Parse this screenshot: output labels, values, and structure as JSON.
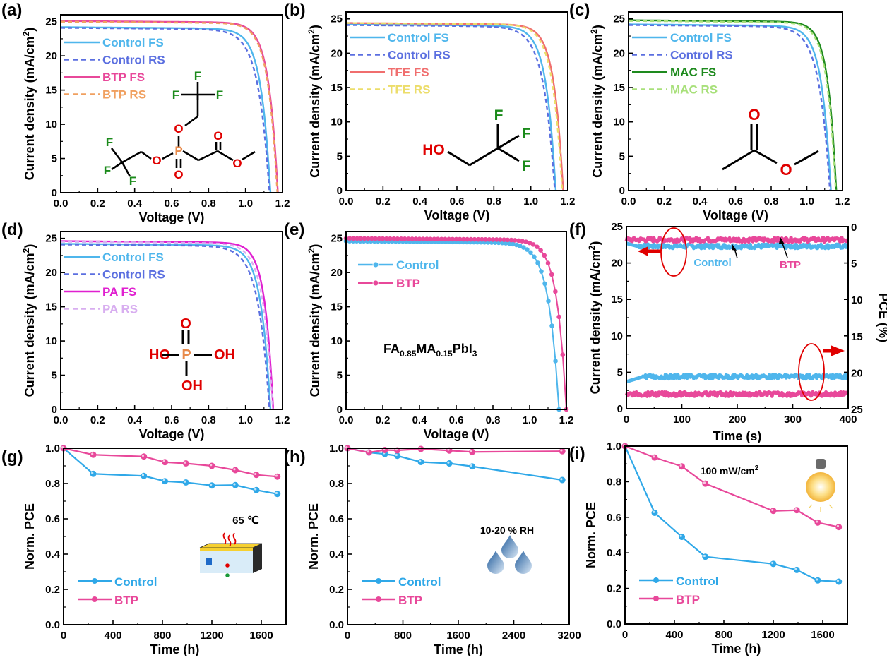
{
  "figure": {
    "panels": [
      "(a)",
      "(b)",
      "(c)",
      "(d)",
      "(e)",
      "(f)",
      "(g)",
      "(h)",
      "(i)"
    ]
  },
  "chart_data": [
    {
      "id": "a",
      "type": "line",
      "panel_label": "(a)",
      "xlabel": "Voltage (V)",
      "ylabel": "Current density (mA/cm²)",
      "xlim": [
        0,
        1.2
      ],
      "ylim": [
        0,
        26
      ],
      "xticks": [
        "0.0",
        "0.2",
        "0.4",
        "0.6",
        "0.8",
        "1.0",
        "1.2"
      ],
      "yticks": [
        "0",
        "5",
        "10",
        "15",
        "20",
        "25"
      ],
      "legend_position": "top-left",
      "series": [
        {
          "name": "Control FS",
          "color": "#4fb6ec",
          "dash": false,
          "jsc": 24.2,
          "voc": 1.135,
          "knee": 0.92
        },
        {
          "name": "Control RS",
          "color": "#5b6fe0",
          "dash": true,
          "jsc": 24.1,
          "voc": 1.13,
          "knee": 0.88
        },
        {
          "name": "BTP FS",
          "color": "#e8489a",
          "dash": false,
          "jsc": 25.1,
          "voc": 1.175,
          "knee": 0.97
        },
        {
          "name": "BTP RS",
          "color": "#f0a060",
          "dash": true,
          "jsc": 25.0,
          "voc": 1.172,
          "knee": 0.965
        }
      ],
      "molecule": {
        "name": "BTP",
        "atoms": [
          "F",
          "F",
          "F",
          "O",
          "P",
          "O",
          "O",
          "O",
          "O",
          "F",
          "F",
          "F"
        ]
      }
    },
    {
      "id": "b",
      "type": "line",
      "panel_label": "(b)",
      "xlabel": "Voltage (V)",
      "ylabel": "Current density (mA/cm²)",
      "xlim": [
        0,
        1.2
      ],
      "ylim": [
        0,
        26
      ],
      "xticks": [
        "0.0",
        "0.2",
        "0.4",
        "0.6",
        "0.8",
        "1.0",
        "1.2"
      ],
      "yticks": [
        "0",
        "5",
        "10",
        "15",
        "20",
        "25"
      ],
      "legend_position": "top-left",
      "series": [
        {
          "name": "Control FS",
          "color": "#4fb6ec",
          "dash": false,
          "jsc": 24.2,
          "voc": 1.135,
          "knee": 0.92
        },
        {
          "name": "Control RS",
          "color": "#5b6fe0",
          "dash": true,
          "jsc": 24.1,
          "voc": 1.13,
          "knee": 0.88
        },
        {
          "name": "TFE FS",
          "color": "#f06e6e",
          "dash": false,
          "jsc": 24.4,
          "voc": 1.175,
          "knee": 0.97
        },
        {
          "name": "TFE RS",
          "color": "#ecdd6a",
          "dash": true,
          "jsc": 24.4,
          "voc": 1.17,
          "knee": 0.955
        }
      ],
      "molecule": {
        "name": "TFE",
        "labels": [
          "HO",
          "F",
          "F",
          "F"
        ]
      }
    },
    {
      "id": "c",
      "type": "line",
      "panel_label": "(c)",
      "xlabel": "Voltage (V)",
      "ylabel": "Current density (mA/cm²)",
      "xlim": [
        0,
        1.2
      ],
      "ylim": [
        0,
        26
      ],
      "xticks": [
        "0.0",
        "0.2",
        "0.4",
        "0.6",
        "0.8",
        "1.0",
        "1.2"
      ],
      "yticks": [
        "0",
        "5",
        "10",
        "15",
        "20",
        "25"
      ],
      "legend_position": "top-left",
      "series": [
        {
          "name": "Control FS",
          "color": "#4fb6ec",
          "dash": false,
          "jsc": 24.2,
          "voc": 1.135,
          "knee": 0.92
        },
        {
          "name": "Control RS",
          "color": "#5b6fe0",
          "dash": true,
          "jsc": 24.1,
          "voc": 1.13,
          "knee": 0.88
        },
        {
          "name": "MAC FS",
          "color": "#1e8a1e",
          "dash": false,
          "jsc": 24.8,
          "voc": 1.165,
          "knee": 0.97
        },
        {
          "name": "MAC RS",
          "color": "#a8e07a",
          "dash": true,
          "jsc": 24.7,
          "voc": 1.162,
          "knee": 0.96
        }
      ],
      "molecule": {
        "name": "MAC",
        "labels": [
          "O",
          "O"
        ]
      }
    },
    {
      "id": "d",
      "type": "line",
      "panel_label": "(d)",
      "xlabel": "Voltage (V)",
      "ylabel": "Current density (mA/cm²)",
      "xlim": [
        0,
        1.2
      ],
      "ylim": [
        0,
        26
      ],
      "xticks": [
        "0.0",
        "0.2",
        "0.4",
        "0.6",
        "0.8",
        "1.0",
        "1.2"
      ],
      "yticks": [
        "0",
        "5",
        "10",
        "15",
        "20",
        "25"
      ],
      "legend_position": "top-left",
      "series": [
        {
          "name": "Control FS",
          "color": "#4fb6ec",
          "dash": false,
          "jsc": 24.2,
          "voc": 1.135,
          "knee": 0.92
        },
        {
          "name": "Control RS",
          "color": "#5b6fe0",
          "dash": true,
          "jsc": 24.1,
          "voc": 1.13,
          "knee": 0.88
        },
        {
          "name": "PA FS",
          "color": "#e020d0",
          "dash": false,
          "jsc": 24.6,
          "voc": 1.15,
          "knee": 0.96
        },
        {
          "name": "PA RS",
          "color": "#d8aef0",
          "dash": true,
          "jsc": 24.5,
          "voc": 1.148,
          "knee": 0.93
        }
      ],
      "molecule": {
        "name": "PA",
        "labels": [
          "O",
          "HO",
          "P",
          "OH",
          "OH"
        ]
      }
    },
    {
      "id": "e",
      "type": "line",
      "panel_label": "(e)",
      "xlabel": "Voltage (V)",
      "ylabel": "Current density (mA/cm²)",
      "xlim": [
        0,
        1.2
      ],
      "ylim": [
        0,
        26
      ],
      "xticks": [
        "0.0",
        "0.2",
        "0.4",
        "0.6",
        "0.8",
        "1.0",
        "1.2"
      ],
      "yticks": [
        "0",
        "5",
        "10",
        "15",
        "20",
        "25"
      ],
      "legend_position": "top-left",
      "annotation": {
        "base": "FA",
        "s1": "0.85",
        "mid": "MA",
        "s2": "0.15",
        "tail": "PbI",
        "s3": "3"
      },
      "series": [
        {
          "name": "Control",
          "color": "#4fb6ec",
          "markers": true,
          "jsc": 24.6,
          "voc": 1.16,
          "knee": 0.93
        },
        {
          "name": "BTP",
          "color": "#e8489a",
          "markers": true,
          "jsc": 25.0,
          "voc": 1.2,
          "knee": 0.99
        }
      ]
    },
    {
      "id": "f",
      "type": "line",
      "panel_label": "(f)",
      "xlabel": "Time (s)",
      "ylabel": "Current density (mA/cm²)",
      "y2label": "PCE (%)",
      "xlim": [
        0,
        400
      ],
      "ylim": [
        0,
        25
      ],
      "y2lim": [
        25,
        0
      ],
      "xticks": [
        "0",
        "100",
        "200",
        "300",
        "400"
      ],
      "yticks": [
        "0",
        "5",
        "10",
        "15",
        "20",
        "25"
      ],
      "y2ticks": [
        "0",
        "5",
        "10",
        "15",
        "20",
        "25"
      ],
      "labels": {
        "control": "Control",
        "btp": "BTP"
      },
      "series": [
        {
          "name": "Control J",
          "color": "#4fb6ec",
          "axis": "left",
          "value": 22.3
        },
        {
          "name": "BTP J",
          "color": "#e8489a",
          "axis": "left",
          "value": 23.2
        },
        {
          "name": "Control PCE",
          "color": "#4fb6ec",
          "axis": "right",
          "value": 20.6
        },
        {
          "name": "BTP PCE",
          "color": "#e8489a",
          "axis": "right",
          "value": 23.0
        }
      ]
    },
    {
      "id": "g",
      "type": "line",
      "panel_label": "(g)",
      "xlabel": "Time (h)",
      "ylabel": "Norm. PCE",
      "xlim": [
        0,
        1800
      ],
      "ylim": [
        0,
        1.0
      ],
      "xticks": [
        "0",
        "400",
        "800",
        "1200",
        "1600"
      ],
      "yticks": [
        "0.0",
        "0.2",
        "0.4",
        "0.6",
        "0.8",
        "1.0"
      ],
      "annotation": "65 ℃",
      "legend_position": "bottom-left",
      "x": [
        0,
        240,
        650,
        820,
        990,
        1200,
        1390,
        1560,
        1730
      ],
      "series": [
        {
          "name": "Control",
          "color": "#2fa8e8",
          "values": [
            1.0,
            0.855,
            0.843,
            0.813,
            0.806,
            0.789,
            0.791,
            0.763,
            0.741
          ]
        },
        {
          "name": "BTP",
          "color": "#e8489a",
          "values": [
            1.0,
            0.963,
            0.953,
            0.921,
            0.914,
            0.9,
            0.876,
            0.849,
            0.839
          ]
        }
      ]
    },
    {
      "id": "h",
      "type": "line",
      "panel_label": "(h)",
      "xlabel": "Time (h)",
      "ylabel": "Norm. PCE",
      "xlim": [
        0,
        3200
      ],
      "ylim": [
        0,
        1.0
      ],
      "xticks": [
        "0",
        "800",
        "1600",
        "2400",
        "3200"
      ],
      "yticks": [
        "0.0",
        "0.2",
        "0.4",
        "0.6",
        "0.8",
        "1.0"
      ],
      "annotation": "10-20 % RH",
      "legend_position": "bottom-left",
      "series": [
        {
          "name": "Control",
          "color": "#2fa8e8",
          "x": [
            0,
            310,
            540,
            720,
            1060,
            1470,
            1800,
            3100
          ],
          "values": [
            1.0,
            0.976,
            0.967,
            0.957,
            0.922,
            0.914,
            0.897,
            0.82
          ]
        },
        {
          "name": "BTP",
          "color": "#e8489a",
          "x": [
            0,
            310,
            540,
            720,
            1060,
            1470,
            1800,
            3100
          ],
          "values": [
            1.0,
            0.976,
            0.99,
            0.988,
            0.996,
            0.987,
            0.979,
            0.983
          ]
        }
      ]
    },
    {
      "id": "i",
      "type": "line",
      "panel_label": "(i)",
      "xlabel": "Time (h)",
      "ylabel": "Norm. PCE",
      "xlim": [
        0,
        1800
      ],
      "ylim": [
        0,
        1.0
      ],
      "xticks": [
        "0",
        "400",
        "800",
        "1200",
        "1600"
      ],
      "yticks": [
        "0.0",
        "0.2",
        "0.4",
        "0.6",
        "0.8",
        "1.0"
      ],
      "annotation": {
        "text": "100 mW/cm",
        "sup": "2"
      },
      "legend_position": "bottom-left",
      "x": [
        0,
        240,
        460,
        650,
        1200,
        1390,
        1560,
        1730
      ],
      "series": [
        {
          "name": "Control",
          "color": "#2fa8e8",
          "values": [
            1.0,
            0.625,
            0.49,
            0.378,
            0.338,
            0.304,
            0.245,
            0.238
          ]
        },
        {
          "name": "BTP",
          "color": "#e8489a",
          "values": [
            1.0,
            0.936,
            0.886,
            0.789,
            0.636,
            0.64,
            0.57,
            0.545
          ]
        }
      ]
    }
  ]
}
